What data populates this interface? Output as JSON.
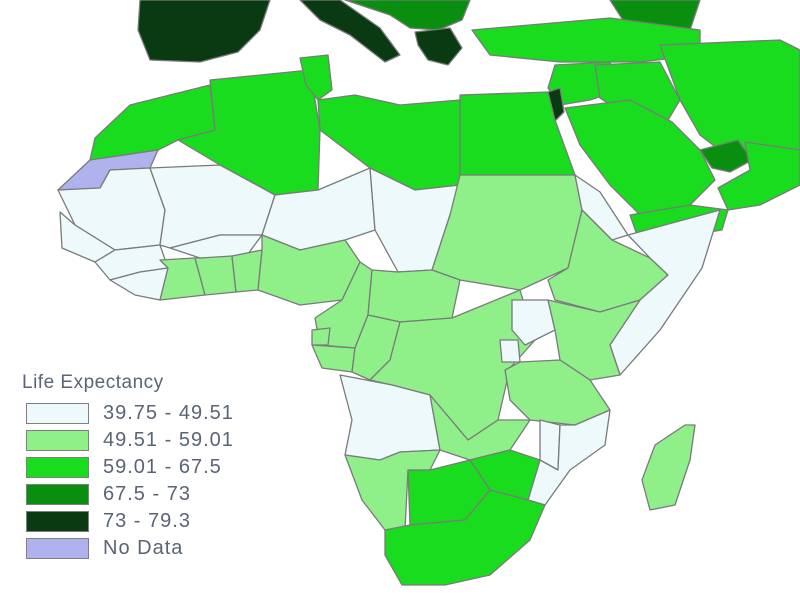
{
  "legend": {
    "title": "Life Expectancy",
    "classes": [
      {
        "label": "39.75 - 49.51",
        "color": "#eef9fb"
      },
      {
        "label": "49.51 - 59.01",
        "color": "#8ff08a"
      },
      {
        "label": "59.01 - 67.5",
        "color": "#19dc1e"
      },
      {
        "label": "67.5 - 73",
        "color": "#0a8e10"
      },
      {
        "label": "73 - 79.3",
        "color": "#0a3a12"
      },
      {
        "label": "No Data",
        "color": "#b0b2ee"
      }
    ]
  },
  "regions": [
    {
      "id": "spain",
      "class": 4
    },
    {
      "id": "italy",
      "class": 4
    },
    {
      "id": "balkans",
      "class": 3
    },
    {
      "id": "greece",
      "class": 4
    },
    {
      "id": "turkey",
      "class": 2
    },
    {
      "id": "caucasus",
      "class": 3
    },
    {
      "id": "morocco",
      "class": 2
    },
    {
      "id": "western-sahara",
      "class": 5
    },
    {
      "id": "algeria",
      "class": 2
    },
    {
      "id": "tunisia",
      "class": 2
    },
    {
      "id": "libya",
      "class": 2
    },
    {
      "id": "egypt",
      "class": 2
    },
    {
      "id": "levant",
      "class": 2
    },
    {
      "id": "israel",
      "class": 4
    },
    {
      "id": "iraq",
      "class": 2
    },
    {
      "id": "iran",
      "class": 2
    },
    {
      "id": "saudi-arabia",
      "class": 2
    },
    {
      "id": "uae",
      "class": 3
    },
    {
      "id": "oman",
      "class": 2
    },
    {
      "id": "yemen",
      "class": 2
    },
    {
      "id": "mauritania",
      "class": 0
    },
    {
      "id": "mali",
      "class": 0
    },
    {
      "id": "niger",
      "class": 0
    },
    {
      "id": "chad",
      "class": 0
    },
    {
      "id": "sudan",
      "class": 1
    },
    {
      "id": "eritrea",
      "class": 0
    },
    {
      "id": "ethiopia",
      "class": 1
    },
    {
      "id": "somalia",
      "class": 0
    },
    {
      "id": "senegal-gambia",
      "class": 0
    },
    {
      "id": "guinea",
      "class": 0
    },
    {
      "id": "sierra-leone-liberia",
      "class": 0
    },
    {
      "id": "cote-divoire",
      "class": 1
    },
    {
      "id": "burkina-faso",
      "class": 0
    },
    {
      "id": "ghana",
      "class": 1
    },
    {
      "id": "togo-benin",
      "class": 1
    },
    {
      "id": "nigeria",
      "class": 1
    },
    {
      "id": "cameroon",
      "class": 1
    },
    {
      "id": "car",
      "class": 1
    },
    {
      "id": "equatorial-guinea",
      "class": 1
    },
    {
      "id": "gabon",
      "class": 1
    },
    {
      "id": "congo",
      "class": 1
    },
    {
      "id": "drc",
      "class": 1
    },
    {
      "id": "uganda",
      "class": 0
    },
    {
      "id": "kenya",
      "class": 1
    },
    {
      "id": "rwanda-burundi",
      "class": 0
    },
    {
      "id": "tanzania",
      "class": 1
    },
    {
      "id": "angola",
      "class": 0
    },
    {
      "id": "zambia",
      "class": 1
    },
    {
      "id": "malawi",
      "class": 0
    },
    {
      "id": "mozambique",
      "class": 0
    },
    {
      "id": "zimbabwe",
      "class": 2
    },
    {
      "id": "namibia",
      "class": 1
    },
    {
      "id": "botswana",
      "class": 2
    },
    {
      "id": "south-africa",
      "class": 2
    },
    {
      "id": "madagascar",
      "class": 1
    }
  ]
}
